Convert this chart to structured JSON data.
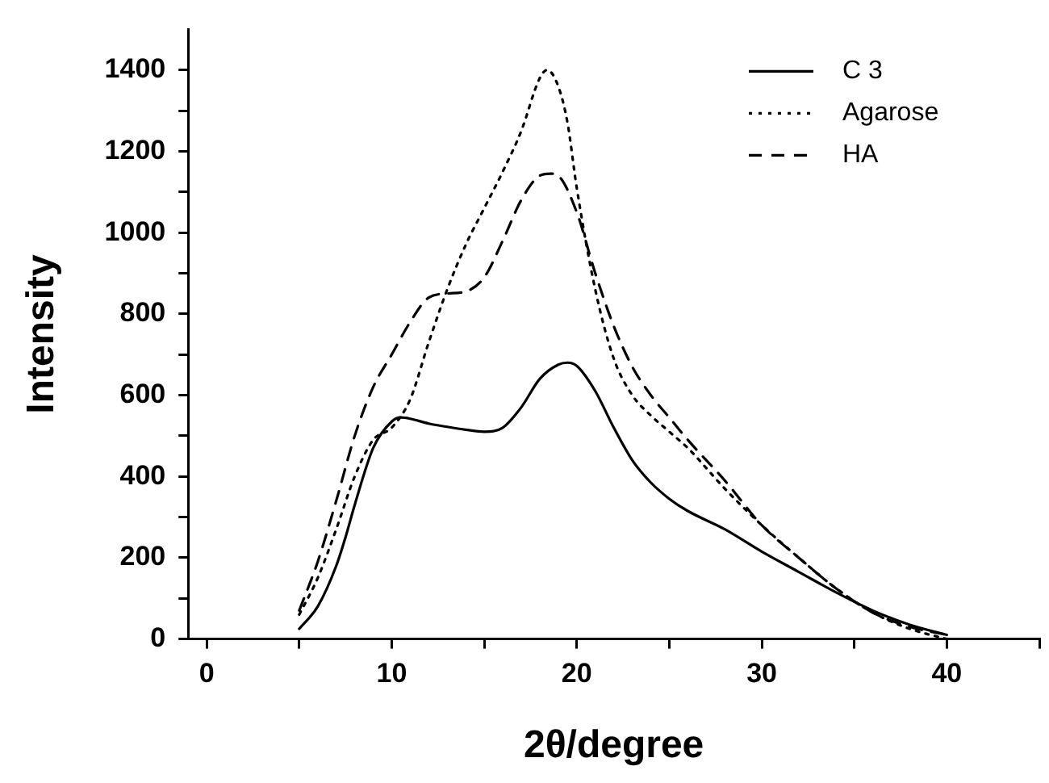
{
  "chart_data": {
    "type": "line",
    "xlabel": "2θ/degree",
    "ylabel": "Intensity",
    "xlim": [
      -1,
      45
    ],
    "ylim": [
      0,
      1500
    ],
    "xticks": [
      0,
      {
        "value": 5,
        "label": null
      },
      10,
      {
        "value": 15,
        "label": null
      },
      20,
      {
        "value": 25,
        "label": null
      },
      30,
      {
        "value": 35,
        "label": null
      },
      40,
      {
        "value": 45,
        "label": null
      }
    ],
    "yticks": [
      0,
      {
        "value": 100,
        "label": null
      },
      200,
      {
        "value": 300,
        "label": null
      },
      400,
      {
        "value": 500,
        "label": null
      },
      600,
      {
        "value": 700,
        "label": null
      },
      800,
      {
        "value": 900,
        "label": null
      },
      1000,
      {
        "value": 1100,
        "label": null
      },
      1200,
      {
        "value": 1300,
        "label": null
      },
      1400
    ],
    "grid": false,
    "legend": "top right",
    "series": [
      {
        "name": "C 3",
        "color": "#000000",
        "line_style": "solid",
        "x": [
          5,
          6,
          7,
          7.5,
          8,
          9,
          10,
          10.5,
          11,
          12,
          13,
          14,
          15,
          16,
          17,
          18,
          19,
          19.5,
          20,
          21,
          22,
          23,
          24,
          25,
          26,
          28,
          30,
          32,
          34,
          36,
          38,
          40
        ],
        "values": [
          25,
          80,
          180,
          250,
          330,
          470,
          535,
          545,
          542,
          530,
          522,
          515,
          510,
          520,
          570,
          640,
          675,
          680,
          672,
          610,
          520,
          440,
          385,
          345,
          315,
          270,
          215,
          165,
          115,
          70,
          35,
          10
        ]
      },
      {
        "name": "Agarose",
        "color": "#000000",
        "line_style": "dotted",
        "x": [
          5,
          6,
          7,
          8,
          9,
          10,
          11,
          12,
          13,
          14,
          15,
          16,
          17,
          18,
          18.4,
          19,
          19.5,
          20,
          21,
          22,
          23,
          24,
          25,
          26,
          28,
          30,
          32,
          34,
          36,
          38,
          40
        ],
        "values": [
          60,
          150,
          270,
          400,
          490,
          520,
          590,
          730,
          860,
          970,
          1060,
          1150,
          1250,
          1380,
          1400,
          1360,
          1270,
          1110,
          860,
          690,
          600,
          550,
          510,
          470,
          370,
          280,
          200,
          125,
          65,
          25,
          0
        ]
      },
      {
        "name": "HA",
        "color": "#000000",
        "line_style": "dashed",
        "x": [
          5,
          6,
          7,
          8,
          9,
          10,
          11,
          12,
          13,
          14,
          15,
          16,
          17,
          18,
          18.6,
          19,
          20,
          21,
          22,
          23,
          24,
          25,
          26,
          28,
          30,
          32,
          34,
          36,
          38,
          40
        ],
        "values": [
          70,
          190,
          340,
          500,
          620,
          700,
          780,
          840,
          850,
          855,
          890,
          980,
          1080,
          1140,
          1145,
          1140,
          1050,
          900,
          770,
          670,
          600,
          545,
          490,
          390,
          280,
          200,
          125,
          65,
          30,
          10
        ]
      }
    ]
  }
}
